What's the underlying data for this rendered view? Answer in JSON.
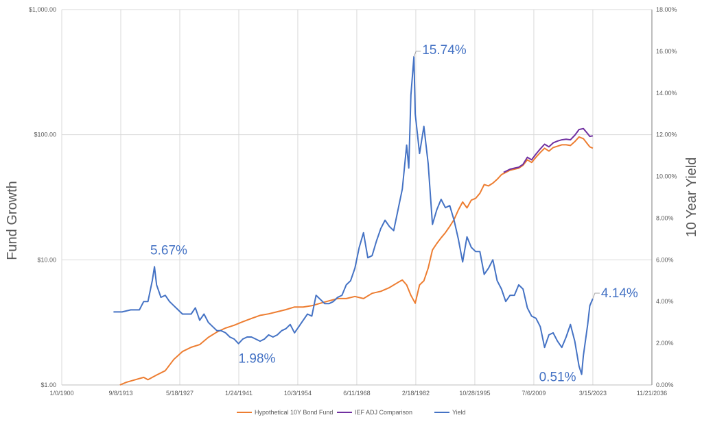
{
  "chart_data": {
    "type": "line",
    "title": "",
    "xlabel": "",
    "ylabel_left": "Fund Growth",
    "ylabel_right": "10 Year Yield",
    "x_range": [
      1900.0,
      2036.9
    ],
    "x_ticks": [
      {
        "label": "1/0/1900",
        "value": 1900.0
      },
      {
        "label": "9/8/1913",
        "value": 1913.69
      },
      {
        "label": "5/18/1927",
        "value": 1927.38
      },
      {
        "label": "1/24/1941",
        "value": 1941.07
      },
      {
        "label": "10/3/1954",
        "value": 1954.75
      },
      {
        "label": "6/11/1968",
        "value": 1968.44
      },
      {
        "label": "2/18/1982",
        "value": 1982.13
      },
      {
        "label": "10/28/1995",
        "value": 1995.82
      },
      {
        "label": "7/6/2009",
        "value": 2009.51
      },
      {
        "label": "3/15/2023",
        "value": 2023.2
      },
      {
        "label": "11/21/2036",
        "value": 2036.89
      }
    ],
    "y_left": {
      "scale": "log",
      "range": [
        1,
        1000
      ],
      "ticks": [
        {
          "label": "$1.00",
          "value": 1
        },
        {
          "label": "$10.00",
          "value": 10
        },
        {
          "label": "$100.00",
          "value": 100
        },
        {
          "label": "$1,000.00",
          "value": 1000
        }
      ]
    },
    "y_right": {
      "scale": "linear",
      "range": [
        0,
        18
      ],
      "ticks": [
        {
          "label": "0.00%",
          "value": 0
        },
        {
          "label": "2.00%",
          "value": 2
        },
        {
          "label": "4.00%",
          "value": 4
        },
        {
          "label": "6.00%",
          "value": 6
        },
        {
          "label": "8.00%",
          "value": 8
        },
        {
          "label": "10.00%",
          "value": 10
        },
        {
          "label": "12.00%",
          "value": 12
        },
        {
          "label": "14.00%",
          "value": 14
        },
        {
          "label": "16.00%",
          "value": 16
        },
        {
          "label": "18.00%",
          "value": 18
        }
      ]
    },
    "series": [
      {
        "name": "Hypothetical 10Y Bond Fund",
        "color": "#ED7D31",
        "axis": "left",
        "points": [
          [
            1913.5,
            1.0
          ],
          [
            1915,
            1.05
          ],
          [
            1917,
            1.1
          ],
          [
            1919,
            1.15
          ],
          [
            1920,
            1.1
          ],
          [
            1921,
            1.15
          ],
          [
            1922,
            1.2
          ],
          [
            1924,
            1.3
          ],
          [
            1926,
            1.6
          ],
          [
            1928,
            1.85
          ],
          [
            1930,
            2.0
          ],
          [
            1932,
            2.1
          ],
          [
            1934,
            2.4
          ],
          [
            1936,
            2.65
          ],
          [
            1938,
            2.85
          ],
          [
            1940,
            3.0
          ],
          [
            1942,
            3.2
          ],
          [
            1944,
            3.4
          ],
          [
            1946,
            3.6
          ],
          [
            1948,
            3.7
          ],
          [
            1950,
            3.85
          ],
          [
            1952,
            4.0
          ],
          [
            1954,
            4.2
          ],
          [
            1956,
            4.2
          ],
          [
            1958,
            4.3
          ],
          [
            1960,
            4.5
          ],
          [
            1962,
            4.7
          ],
          [
            1964,
            4.9
          ],
          [
            1966,
            4.9
          ],
          [
            1968,
            5.1
          ],
          [
            1970,
            4.9
          ],
          [
            1972,
            5.4
          ],
          [
            1974,
            5.6
          ],
          [
            1976,
            6.0
          ],
          [
            1978,
            6.6
          ],
          [
            1979,
            6.9
          ],
          [
            1980,
            6.3
          ],
          [
            1981,
            5.2
          ],
          [
            1982,
            4.5
          ],
          [
            1983,
            6.3
          ],
          [
            1984,
            6.8
          ],
          [
            1985,
            8.6
          ],
          [
            1986,
            12.0
          ],
          [
            1987,
            13.5
          ],
          [
            1988,
            15.0
          ],
          [
            1989,
            16.5
          ],
          [
            1990,
            18.5
          ],
          [
            1991,
            21.0
          ],
          [
            1992,
            25.0
          ],
          [
            1993,
            29.0
          ],
          [
            1994,
            26.0
          ],
          [
            1995,
            30.0
          ],
          [
            1996,
            31.0
          ],
          [
            1997,
            34.0
          ],
          [
            1998,
            40.0
          ],
          [
            1999,
            39.0
          ],
          [
            2000,
            41.0
          ],
          [
            2001,
            44.0
          ],
          [
            2002,
            48.0
          ],
          [
            2003,
            50.0
          ],
          [
            2004,
            52.0
          ],
          [
            2005,
            53.0
          ],
          [
            2006,
            54.0
          ],
          [
            2007,
            57.0
          ],
          [
            2008,
            63.0
          ],
          [
            2009,
            60.0
          ],
          [
            2010,
            66.0
          ],
          [
            2011,
            72.0
          ],
          [
            2012,
            78.0
          ],
          [
            2013,
            74.0
          ],
          [
            2014,
            79.0
          ],
          [
            2015,
            81.0
          ],
          [
            2016,
            83.0
          ],
          [
            2017,
            83.0
          ],
          [
            2018,
            82.0
          ],
          [
            2019,
            88.0
          ],
          [
            2020,
            96.0
          ],
          [
            2021,
            93.0
          ],
          [
            2022,
            84.0
          ],
          [
            2022.5,
            80.0
          ],
          [
            2023.2,
            78.0
          ]
        ]
      },
      {
        "name": "IEF ADJ Comparison",
        "color": "#7030A0",
        "axis": "left",
        "points": [
          [
            2002.5,
            50.0
          ],
          [
            2003,
            51.0
          ],
          [
            2004,
            53.0
          ],
          [
            2005,
            54.0
          ],
          [
            2006,
            55.0
          ],
          [
            2007,
            58.0
          ],
          [
            2008,
            66.0
          ],
          [
            2009,
            63.0
          ],
          [
            2010,
            70.0
          ],
          [
            2011,
            77.0
          ],
          [
            2012,
            84.0
          ],
          [
            2013,
            80.0
          ],
          [
            2014,
            86.0
          ],
          [
            2015,
            89.0
          ],
          [
            2016,
            91.0
          ],
          [
            2017,
            92.0
          ],
          [
            2018,
            91.0
          ],
          [
            2019,
            99.0
          ],
          [
            2020,
            110.0
          ],
          [
            2021,
            112.0
          ],
          [
            2022,
            102.0
          ],
          [
            2022.5,
            97.0
          ],
          [
            2023.2,
            98.0
          ]
        ]
      },
      {
        "name": "Yield",
        "color": "#4472C4",
        "axis": "right",
        "points": [
          [
            1912,
            3.5
          ],
          [
            1914,
            3.5
          ],
          [
            1916,
            3.6
          ],
          [
            1918,
            3.6
          ],
          [
            1919,
            4.0
          ],
          [
            1920,
            4.0
          ],
          [
            1921,
            5.0
          ],
          [
            1921.5,
            5.67
          ],
          [
            1922,
            4.8
          ],
          [
            1923,
            4.2
          ],
          [
            1924,
            4.3
          ],
          [
            1925,
            4.0
          ],
          [
            1926,
            3.8
          ],
          [
            1927,
            3.6
          ],
          [
            1928,
            3.4
          ],
          [
            1929,
            3.4
          ],
          [
            1930,
            3.4
          ],
          [
            1931,
            3.7
          ],
          [
            1932,
            3.1
          ],
          [
            1933,
            3.4
          ],
          [
            1934,
            3.0
          ],
          [
            1935,
            2.8
          ],
          [
            1936,
            2.6
          ],
          [
            1937,
            2.6
          ],
          [
            1938,
            2.5
          ],
          [
            1939,
            2.3
          ],
          [
            1940,
            2.2
          ],
          [
            1941,
            1.98
          ],
          [
            1942,
            2.2
          ],
          [
            1943,
            2.3
          ],
          [
            1944,
            2.3
          ],
          [
            1945,
            2.2
          ],
          [
            1946,
            2.1
          ],
          [
            1947,
            2.2
          ],
          [
            1948,
            2.4
          ],
          [
            1949,
            2.3
          ],
          [
            1950,
            2.4
          ],
          [
            1951,
            2.6
          ],
          [
            1952,
            2.7
          ],
          [
            1953,
            2.9
          ],
          [
            1954,
            2.5
          ],
          [
            1955,
            2.8
          ],
          [
            1956,
            3.1
          ],
          [
            1957,
            3.4
          ],
          [
            1958,
            3.3
          ],
          [
            1959,
            4.3
          ],
          [
            1960,
            4.1
          ],
          [
            1961,
            3.9
          ],
          [
            1962,
            3.9
          ],
          [
            1963,
            4.0
          ],
          [
            1964,
            4.2
          ],
          [
            1965,
            4.3
          ],
          [
            1966,
            4.8
          ],
          [
            1967,
            5.0
          ],
          [
            1968,
            5.6
          ],
          [
            1969,
            6.6
          ],
          [
            1970,
            7.3
          ],
          [
            1971,
            6.1
          ],
          [
            1972,
            6.2
          ],
          [
            1973,
            6.9
          ],
          [
            1974,
            7.5
          ],
          [
            1975,
            7.9
          ],
          [
            1976,
            7.6
          ],
          [
            1977,
            7.4
          ],
          [
            1978,
            8.4
          ],
          [
            1979,
            9.4
          ],
          [
            1980,
            11.5
          ],
          [
            1980.5,
            10.4
          ],
          [
            1981,
            13.9
          ],
          [
            1981.7,
            15.74
          ],
          [
            1982,
            13.0
          ],
          [
            1983,
            11.1
          ],
          [
            1984,
            12.4
          ],
          [
            1985,
            10.6
          ],
          [
            1986,
            7.7
          ],
          [
            1987,
            8.4
          ],
          [
            1988,
            8.9
          ],
          [
            1989,
            8.5
          ],
          [
            1990,
            8.6
          ],
          [
            1991,
            7.9
          ],
          [
            1992,
            7.0
          ],
          [
            1993,
            5.9
          ],
          [
            1994,
            7.1
          ],
          [
            1995,
            6.6
          ],
          [
            1996,
            6.4
          ],
          [
            1997,
            6.4
          ],
          [
            1998,
            5.3
          ],
          [
            1999,
            5.6
          ],
          [
            2000,
            6.0
          ],
          [
            2001,
            5.0
          ],
          [
            2002,
            4.6
          ],
          [
            2003,
            4.0
          ],
          [
            2004,
            4.3
          ],
          [
            2005,
            4.3
          ],
          [
            2006,
            4.8
          ],
          [
            2007,
            4.6
          ],
          [
            2008,
            3.7
          ],
          [
            2009,
            3.3
          ],
          [
            2010,
            3.2
          ],
          [
            2011,
            2.8
          ],
          [
            2012,
            1.8
          ],
          [
            2013,
            2.4
          ],
          [
            2014,
            2.5
          ],
          [
            2015,
            2.1
          ],
          [
            2016,
            1.8
          ],
          [
            2017,
            2.3
          ],
          [
            2018,
            2.9
          ],
          [
            2019,
            2.1
          ],
          [
            2020,
            0.9
          ],
          [
            2020.6,
            0.51
          ],
          [
            2021,
            1.4
          ],
          [
            2022,
            2.9
          ],
          [
            2022.5,
            3.8
          ],
          [
            2023.2,
            4.14
          ]
        ]
      }
    ],
    "annotations": [
      {
        "text": "5.67%",
        "series": "Yield",
        "x": 1921.5,
        "y": 5.67
      },
      {
        "text": "1.98%",
        "series": "Yield",
        "x": 1941.0,
        "y": 1.98
      },
      {
        "text": "15.74%",
        "series": "Yield",
        "x": 1981.7,
        "y": 15.74
      },
      {
        "text": "0.51%",
        "series": "Yield",
        "x": 2020.6,
        "y": 0.51
      },
      {
        "text": "4.14%",
        "series": "Yield",
        "x": 2023.2,
        "y": 4.14
      }
    ],
    "legend": {
      "position": "bottom",
      "entries": [
        "Hypothetical 10Y Bond Fund",
        "IEF ADJ Comparison",
        "Yield"
      ]
    },
    "grid": {
      "horizontal": true,
      "vertical": true
    }
  }
}
